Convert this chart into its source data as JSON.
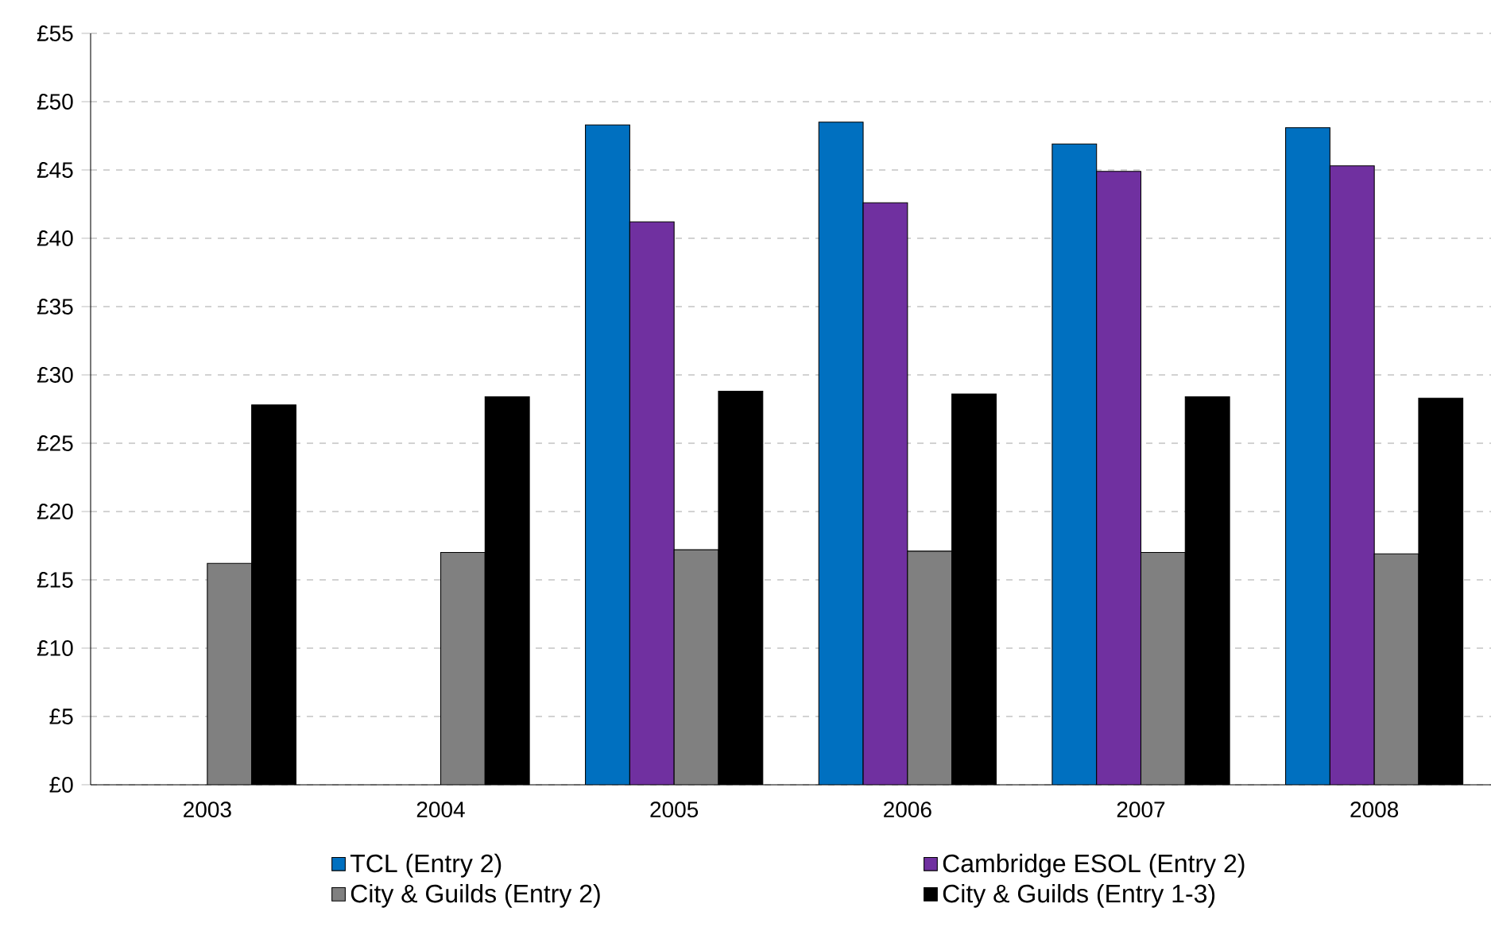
{
  "chart_data": {
    "type": "bar",
    "categories": [
      "2003",
      "2004",
      "2005",
      "2006",
      "2007",
      "2008"
    ],
    "series": [
      {
        "name": "TCL (Entry 2)",
        "color": "#0070c0",
        "values": [
          null,
          null,
          48.3,
          48.5,
          46.9,
          48.1
        ]
      },
      {
        "name": "Cambridge ESOL (Entry 2)",
        "color": "#7030a0",
        "values": [
          null,
          null,
          41.2,
          42.6,
          44.9,
          45.3
        ]
      },
      {
        "name": "City & Guilds (Entry 2)",
        "color": "#808080",
        "values": [
          16.2,
          17.0,
          17.2,
          17.1,
          17.0,
          16.9
        ]
      },
      {
        "name": "City & Guilds (Entry 1-3)",
        "color": "#000000",
        "values": [
          27.8,
          28.4,
          28.8,
          28.6,
          28.4,
          28.3
        ]
      }
    ],
    "ylim": [
      0,
      55
    ],
    "yticks": [
      {
        "value": 0,
        "label": "£0"
      },
      {
        "value": 5,
        "label": "£5"
      },
      {
        "value": 10,
        "label": "£10"
      },
      {
        "value": 15,
        "label": "£15"
      },
      {
        "value": 20,
        "label": "£20"
      },
      {
        "value": 25,
        "label": "£25"
      },
      {
        "value": 30,
        "label": "£30"
      },
      {
        "value": 35,
        "label": "£35"
      },
      {
        "value": 40,
        "label": "£40"
      },
      {
        "value": 45,
        "label": "£45"
      },
      {
        "value": 50,
        "label": "£50"
      },
      {
        "value": 55,
        "label": "£55"
      }
    ],
    "grid": "y",
    "legend": "bottom"
  }
}
